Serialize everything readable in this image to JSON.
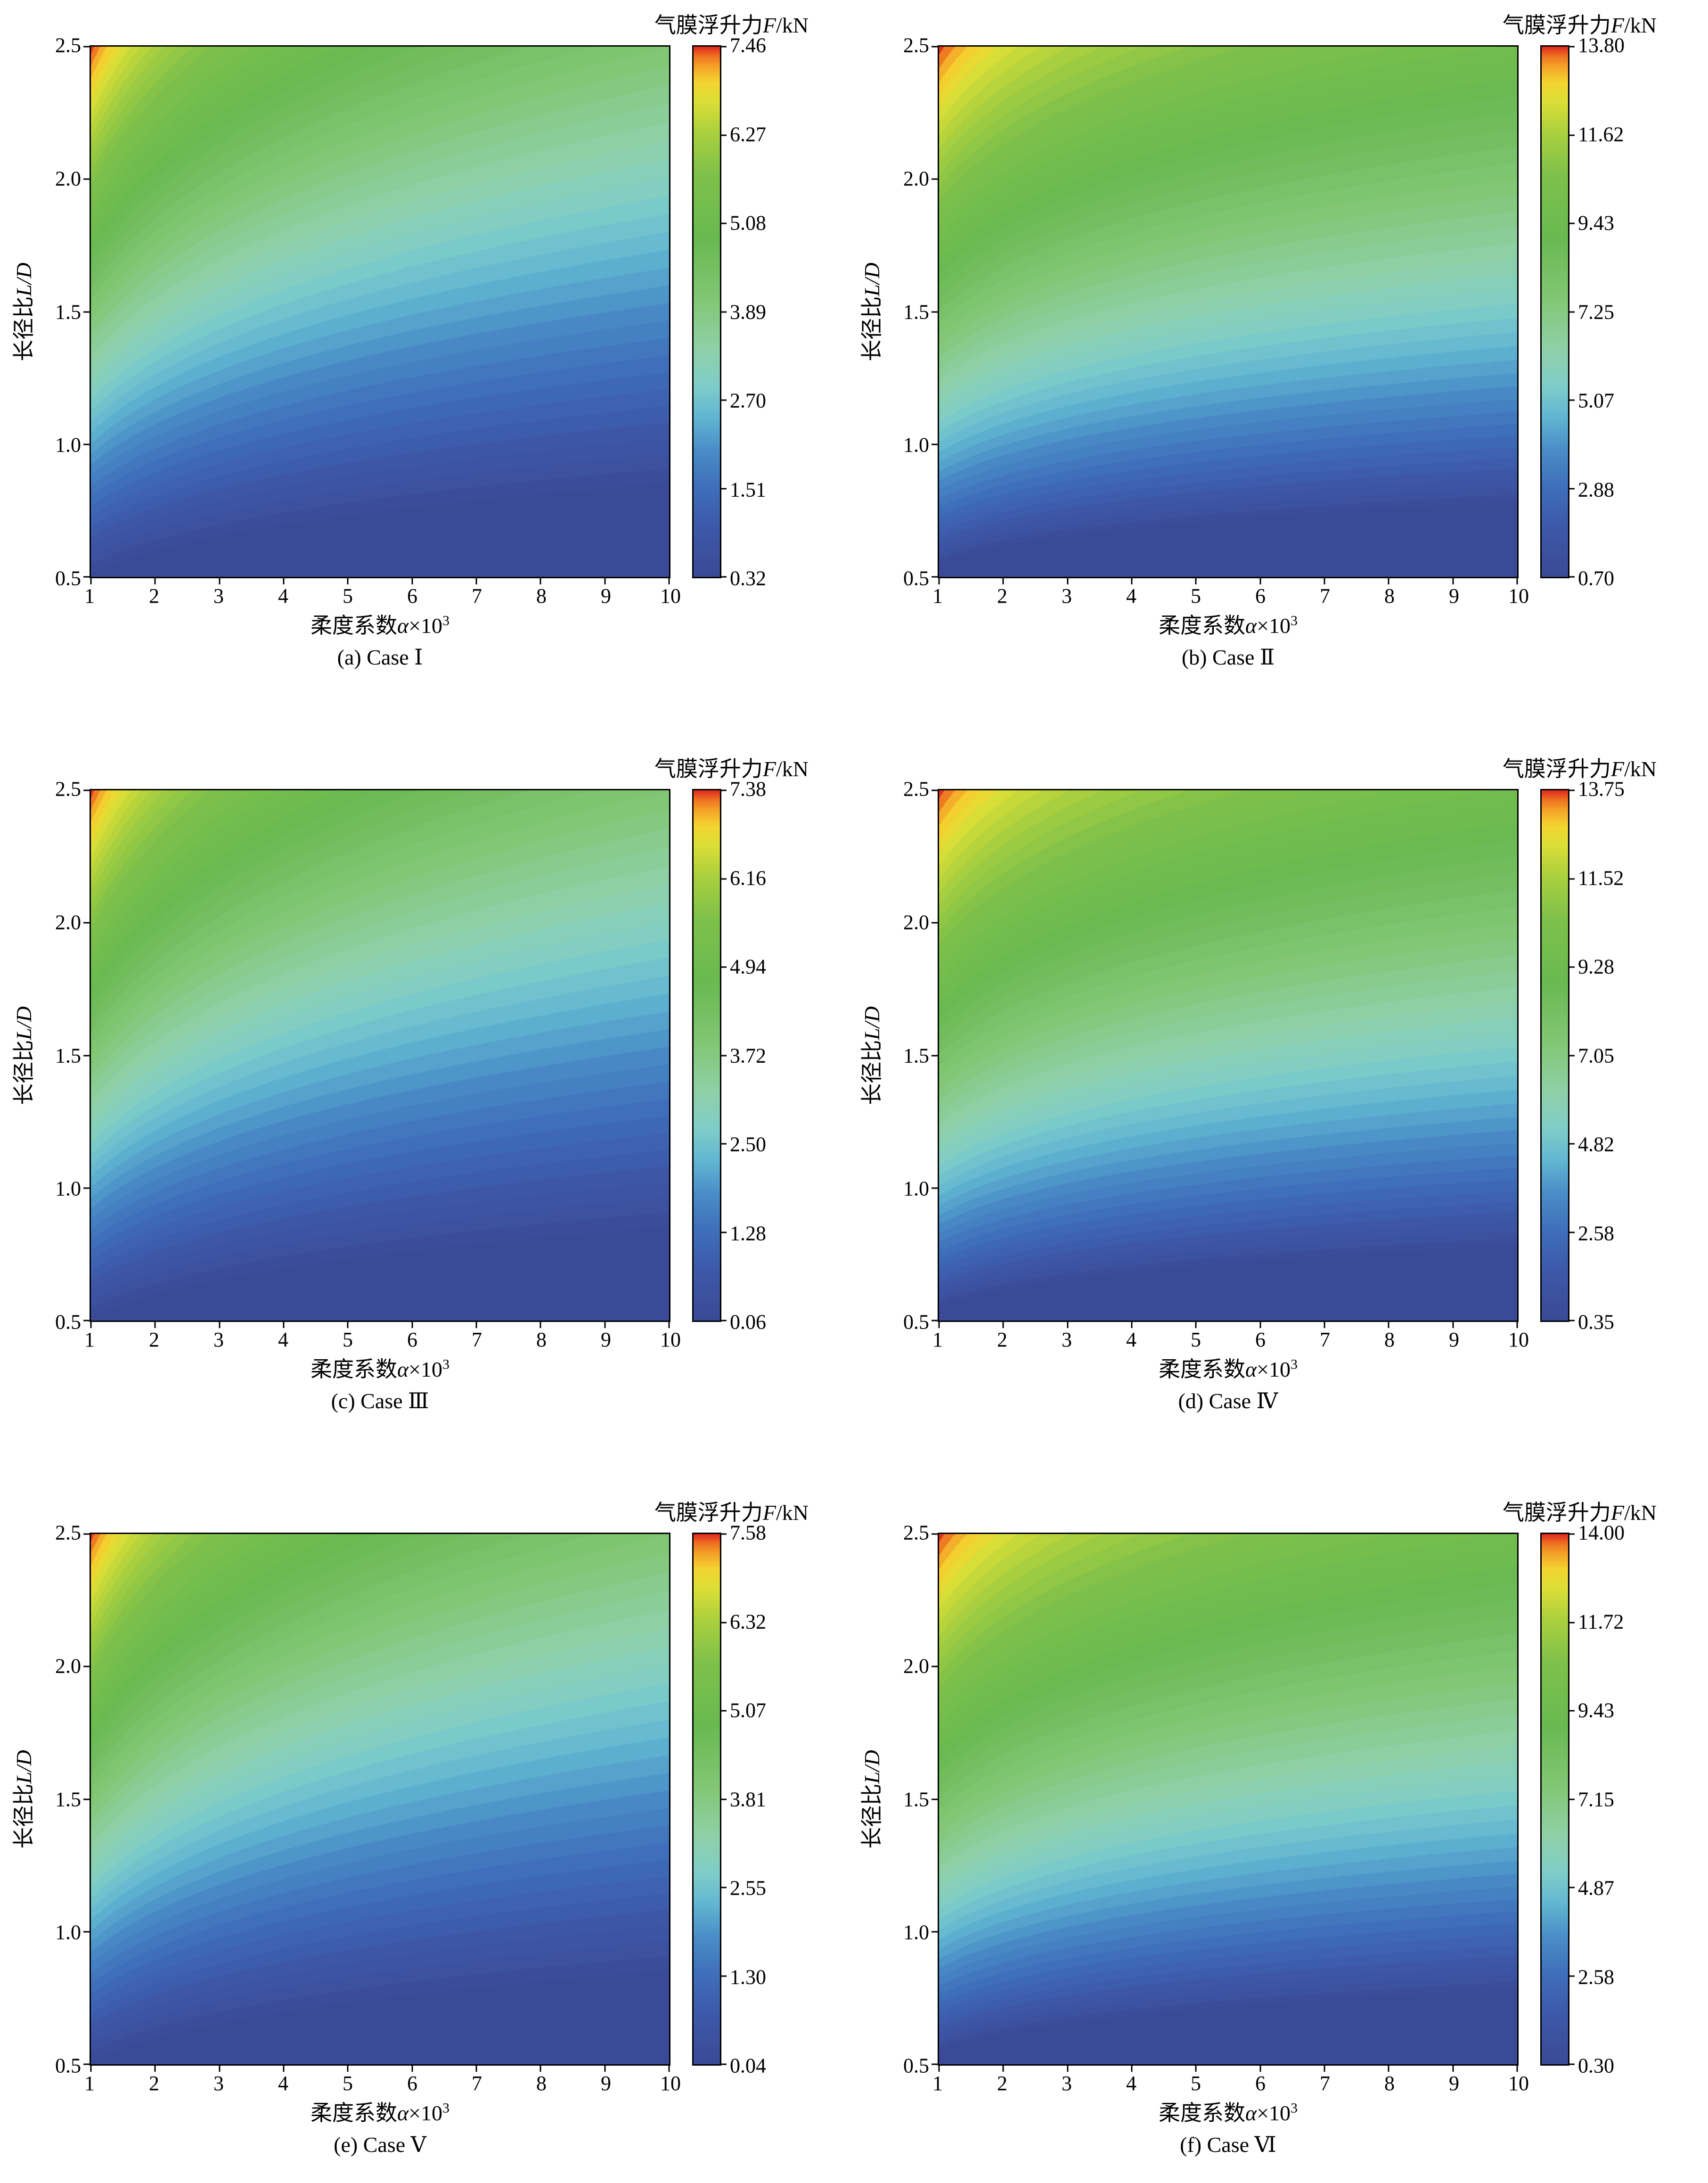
{
  "page": {
    "background": "#ffffff"
  },
  "shared": {
    "value_title": {
      "prefix": "气膜浮升力",
      "italic": "F",
      "suffix": "/kN"
    },
    "xlabel": {
      "prefix": "柔度系数",
      "italic": "α",
      "times": "×10",
      "sup": "3"
    },
    "ylabel": {
      "prefix": "长径比",
      "italic": "L/D"
    },
    "x_tick_labels": [
      "1",
      "2",
      "3",
      "4",
      "5",
      "6",
      "7",
      "8",
      "9",
      "10"
    ],
    "y_tick_labels": [
      "2.5",
      "2.0",
      "1.5",
      "1.0",
      "0.5"
    ],
    "colormap_stops": [
      {
        "t": 0.0,
        "c": "#3b4a96"
      },
      {
        "t": 0.09,
        "c": "#3d58a8"
      },
      {
        "t": 0.17,
        "c": "#3f6fba"
      },
      {
        "t": 0.24,
        "c": "#4a8ec8"
      },
      {
        "t": 0.3,
        "c": "#61b5d2"
      },
      {
        "t": 0.36,
        "c": "#7fcdc9"
      },
      {
        "t": 0.43,
        "c": "#8fd0a8"
      },
      {
        "t": 0.52,
        "c": "#83c776"
      },
      {
        "t": 0.64,
        "c": "#69b951"
      },
      {
        "t": 0.76,
        "c": "#7ec14a"
      },
      {
        "t": 0.84,
        "c": "#abd03e"
      },
      {
        "t": 0.9,
        "c": "#dcdf36"
      },
      {
        "t": 0.935,
        "c": "#f4d430"
      },
      {
        "t": 0.965,
        "c": "#f4a228"
      },
      {
        "t": 0.985,
        "c": "#ee6f21"
      },
      {
        "t": 1.0,
        "c": "#e1301f"
      }
    ]
  },
  "chart_data": [
    {
      "id": "a",
      "type": "heatmap",
      "caption": "(a) Case Ⅰ",
      "x": {
        "range": [
          1,
          10
        ],
        "ticks": [
          1,
          2,
          3,
          4,
          5,
          6,
          7,
          8,
          9,
          10
        ]
      },
      "y": {
        "range": [
          0.5,
          2.5
        ],
        "ticks": [
          0.5,
          1.0,
          1.5,
          2.0,
          2.5
        ]
      },
      "value": {
        "min": 0.32,
        "max": 7.46
      },
      "colorbar_ticks": [
        "7.46",
        "6.27",
        "5.08",
        "3.89",
        "2.70",
        "1.51",
        "0.32"
      ],
      "field_model": {
        "x_exponent": 0.22,
        "s_min": 0.5,
        "s_max": 2.5,
        "gamma": 0.92,
        "levels": 48,
        "description": "v = clamp((y*x^-x_exponent - s_min)/(s_max-s_min))^gamma; F = min + v*(max-min)"
      }
    },
    {
      "id": "b",
      "type": "heatmap",
      "caption": "(b) Case Ⅱ",
      "x": {
        "range": [
          1,
          10
        ],
        "ticks": [
          1,
          2,
          3,
          4,
          5,
          6,
          7,
          8,
          9,
          10
        ]
      },
      "y": {
        "range": [
          0.5,
          2.5
        ],
        "ticks": [
          0.5,
          1.0,
          1.5,
          2.0,
          2.5
        ]
      },
      "value": {
        "min": 0.7,
        "max": 13.8
      },
      "colorbar_ticks": [
        "13.80",
        "11.62",
        "9.43",
        "7.25",
        "5.07",
        "2.88",
        "0.70"
      ],
      "field_model": {
        "x_exponent": 0.15,
        "s_min": 0.55,
        "s_max": 2.5,
        "gamma": 0.78,
        "levels": 48,
        "description": "v = clamp((y*x^-x_exponent - s_min)/(s_max-s_min))^gamma; F = min + v*(max-min)"
      }
    },
    {
      "id": "c",
      "type": "heatmap",
      "caption": "(c) Case Ⅲ",
      "x": {
        "range": [
          1,
          10
        ],
        "ticks": [
          1,
          2,
          3,
          4,
          5,
          6,
          7,
          8,
          9,
          10
        ]
      },
      "y": {
        "range": [
          0.5,
          2.5
        ],
        "ticks": [
          0.5,
          1.0,
          1.5,
          2.0,
          2.5
        ]
      },
      "value": {
        "min": 0.06,
        "max": 7.38
      },
      "colorbar_ticks": [
        "7.38",
        "6.16",
        "4.94",
        "3.72",
        "2.50",
        "1.28",
        "0.06"
      ],
      "field_model": {
        "x_exponent": 0.22,
        "s_min": 0.5,
        "s_max": 2.5,
        "gamma": 0.92,
        "levels": 48,
        "description": "v = clamp((y*x^-x_exponent - s_min)/(s_max-s_min))^gamma; F = min + v*(max-min)"
      }
    },
    {
      "id": "d",
      "type": "heatmap",
      "caption": "(d) Case Ⅳ",
      "x": {
        "range": [
          1,
          10
        ],
        "ticks": [
          1,
          2,
          3,
          4,
          5,
          6,
          7,
          8,
          9,
          10
        ]
      },
      "y": {
        "range": [
          0.5,
          2.5
        ],
        "ticks": [
          0.5,
          1.0,
          1.5,
          2.0,
          2.5
        ]
      },
      "value": {
        "min": 0.35,
        "max": 13.75
      },
      "colorbar_ticks": [
        "13.75",
        "11.52",
        "9.28",
        "7.05",
        "4.82",
        "2.58",
        "0.35"
      ],
      "field_model": {
        "x_exponent": 0.15,
        "s_min": 0.55,
        "s_max": 2.5,
        "gamma": 0.78,
        "levels": 48,
        "description": "v = clamp((y*x^-x_exponent - s_min)/(s_max-s_min))^gamma; F = min + v*(max-min)"
      }
    },
    {
      "id": "e",
      "type": "heatmap",
      "caption": "(e) Case Ⅴ",
      "x": {
        "range": [
          1,
          10
        ],
        "ticks": [
          1,
          2,
          3,
          4,
          5,
          6,
          7,
          8,
          9,
          10
        ]
      },
      "y": {
        "range": [
          0.5,
          2.5
        ],
        "ticks": [
          0.5,
          1.0,
          1.5,
          2.0,
          2.5
        ]
      },
      "value": {
        "min": 0.04,
        "max": 7.58
      },
      "colorbar_ticks": [
        "7.58",
        "6.32",
        "5.07",
        "3.81",
        "2.55",
        "1.30",
        "0.04"
      ],
      "field_model": {
        "x_exponent": 0.22,
        "s_min": 0.5,
        "s_max": 2.5,
        "gamma": 0.92,
        "levels": 48,
        "description": "v = clamp((y*x^-x_exponent - s_min)/(s_max-s_min))^gamma; F = min + v*(max-min)"
      }
    },
    {
      "id": "f",
      "type": "heatmap",
      "caption": "(f) Case Ⅵ",
      "x": {
        "range": [
          1,
          10
        ],
        "ticks": [
          1,
          2,
          3,
          4,
          5,
          6,
          7,
          8,
          9,
          10
        ]
      },
      "y": {
        "range": [
          0.5,
          2.5
        ],
        "ticks": [
          0.5,
          1.0,
          1.5,
          2.0,
          2.5
        ]
      },
      "value": {
        "min": 0.3,
        "max": 14.0
      },
      "colorbar_ticks": [
        "14.00",
        "11.72",
        "9.43",
        "7.15",
        "4.87",
        "2.58",
        "0.30"
      ],
      "field_model": {
        "x_exponent": 0.15,
        "s_min": 0.55,
        "s_max": 2.5,
        "gamma": 0.78,
        "levels": 48,
        "description": "v = clamp((y*x^-x_exponent - s_min)/(s_max-s_min))^gamma; F = min + v*(max-min)"
      }
    }
  ]
}
